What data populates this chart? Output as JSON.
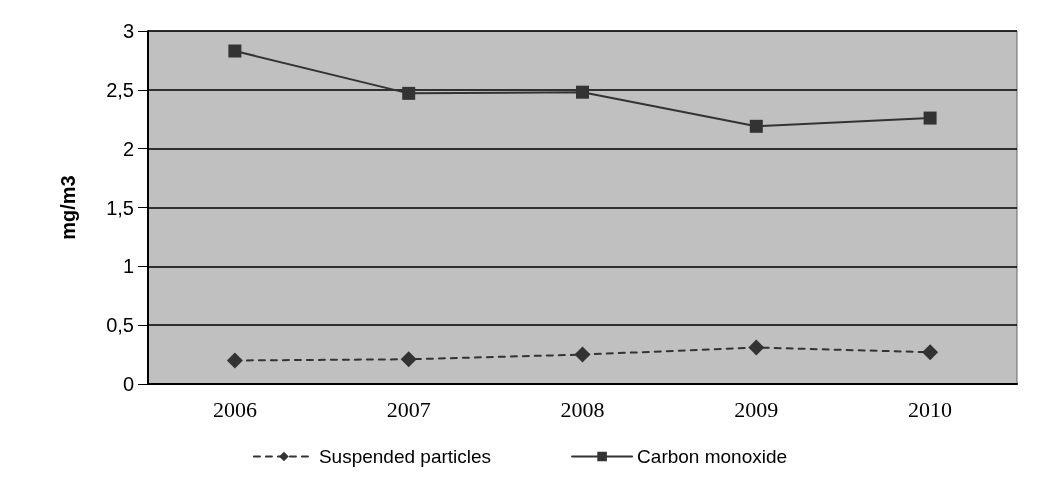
{
  "chart_data": {
    "type": "line",
    "ylabel": "mg/m3",
    "categories": [
      "2006",
      "2007",
      "2008",
      "2009",
      "2010"
    ],
    "series": [
      {
        "name": "Suspended particles",
        "color": "#333333",
        "marker": "diamond",
        "line_style": "dashed",
        "values": [
          0.2,
          0.21,
          0.25,
          0.31,
          0.27
        ]
      },
      {
        "name": "Carbon monoxide",
        "color": "#333333",
        "marker": "square",
        "line_style": "solid",
        "values": [
          2.83,
          2.47,
          2.48,
          2.19,
          2.26
        ]
      }
    ],
    "ylim": [
      0,
      3
    ],
    "yticks": [
      0,
      {
        "value": 0.5,
        "label": "0,5"
      },
      1,
      {
        "value": 1.5,
        "label": "1,5"
      },
      2,
      {
        "value": 2.5,
        "label": "2,5"
      },
      3
    ],
    "grid": "y",
    "legend": "bottom"
  }
}
